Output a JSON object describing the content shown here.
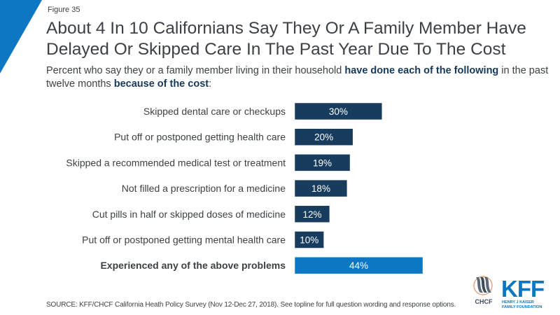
{
  "figure_label": "Figure 35",
  "title": "About 4 In 10 Californians Say They Or A Family Member Have Delayed Or Skipped Care In The Past Year Due To The Cost",
  "subtitle": {
    "part1": "Percent who say they or a family member living in their household ",
    "bold1": "have done each of the following",
    "part2": " in the past twelve months ",
    "bold2": "because of the cost",
    "part3": ":"
  },
  "colors": {
    "bar": "#173c5e",
    "bar_highlight": "#0d77c4",
    "accent_blue": "#0d77c4",
    "text": "#3d4145"
  },
  "chart_data": {
    "type": "bar",
    "orientation": "horizontal",
    "title": "About 4 In 10 Californians Say They Or A Family Member Have Delayed Or Skipped Care In The Past Year Due To The Cost",
    "xlabel": "",
    "ylabel": "",
    "xlim": [
      0,
      100
    ],
    "grid": false,
    "legend": "none",
    "categories": [
      "Skipped dental care or checkups",
      "Put off or postponed getting health care",
      "Skipped a recommended medical test or treatment",
      "Not filled a prescription for a medicine",
      "Cut pills in half or skipped doses of medicine",
      "Put off or postponed getting mental health care",
      "Experienced any of the above problems"
    ],
    "values": [
      30,
      20,
      19,
      18,
      12,
      10,
      44
    ],
    "data_labels": [
      "30%",
      "20%",
      "19%",
      "18%",
      "12%",
      "10%",
      "44%"
    ],
    "highlight_index": 6,
    "unit": "%"
  },
  "source": "SOURCE: KFF/CHCF California Heath Policy Survey (Nov 12-Dec 27, 2018). See topline for full question wording and response options.",
  "logos": {
    "chcf": "CHCF",
    "kff": "KFF",
    "kff_line1": "HENRY J KAISER",
    "kff_line2": "FAMILY FOUNDATION"
  }
}
